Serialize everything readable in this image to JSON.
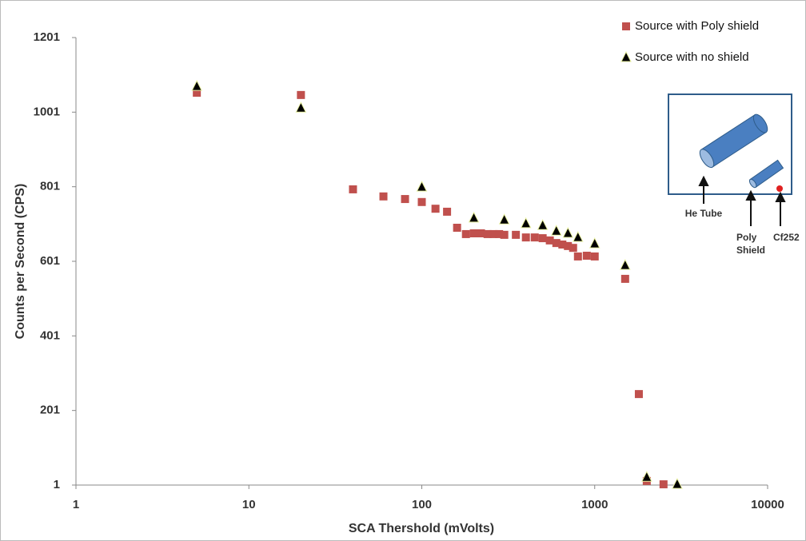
{
  "chart_data": {
    "type": "scatter",
    "x_label": "SCA Thershold (mVolts)",
    "y_label": "Counts per Second (CPS)",
    "xscale": "log",
    "xlim": [
      1,
      10000
    ],
    "xticks": [
      1,
      10,
      100,
      1000,
      10000
    ],
    "ylim": [
      1,
      1201
    ],
    "yticks": [
      1,
      201,
      401,
      601,
      801,
      1001,
      1201
    ],
    "grid": false,
    "legend": "top-right",
    "series": [
      {
        "name": "Source with Poly shield",
        "color": "#c0504d",
        "marker": "square",
        "x": [
          5,
          20,
          40,
          60,
          80,
          100,
          120,
          140,
          160,
          180,
          200,
          220,
          240,
          260,
          280,
          300,
          350,
          400,
          450,
          500,
          550,
          600,
          650,
          700,
          750,
          800,
          900,
          1000,
          1500,
          1800,
          2000,
          2500
        ],
        "values": [
          1053,
          1047,
          794,
          775,
          768,
          760,
          742,
          734,
          691,
          674,
          676,
          676,
          674,
          674,
          674,
          672,
          672,
          665,
          665,
          663,
          657,
          650,
          646,
          642,
          637,
          614,
          616,
          614,
          554,
          245,
          12,
          3
        ]
      },
      {
        "name": "Source with no shield",
        "color": "#000000",
        "marker": "triangle",
        "x": [
          5,
          20,
          100,
          200,
          300,
          400,
          500,
          600,
          700,
          800,
          1000,
          1500,
          2000,
          3000
        ],
        "values": [
          1070,
          1012,
          800,
          717,
          712,
          702,
          697,
          682,
          676,
          665,
          648,
          590,
          22,
          3
        ]
      }
    ],
    "inset_labels": [
      "He Tube",
      "Poly",
      "Shield",
      "Cf252"
    ]
  }
}
